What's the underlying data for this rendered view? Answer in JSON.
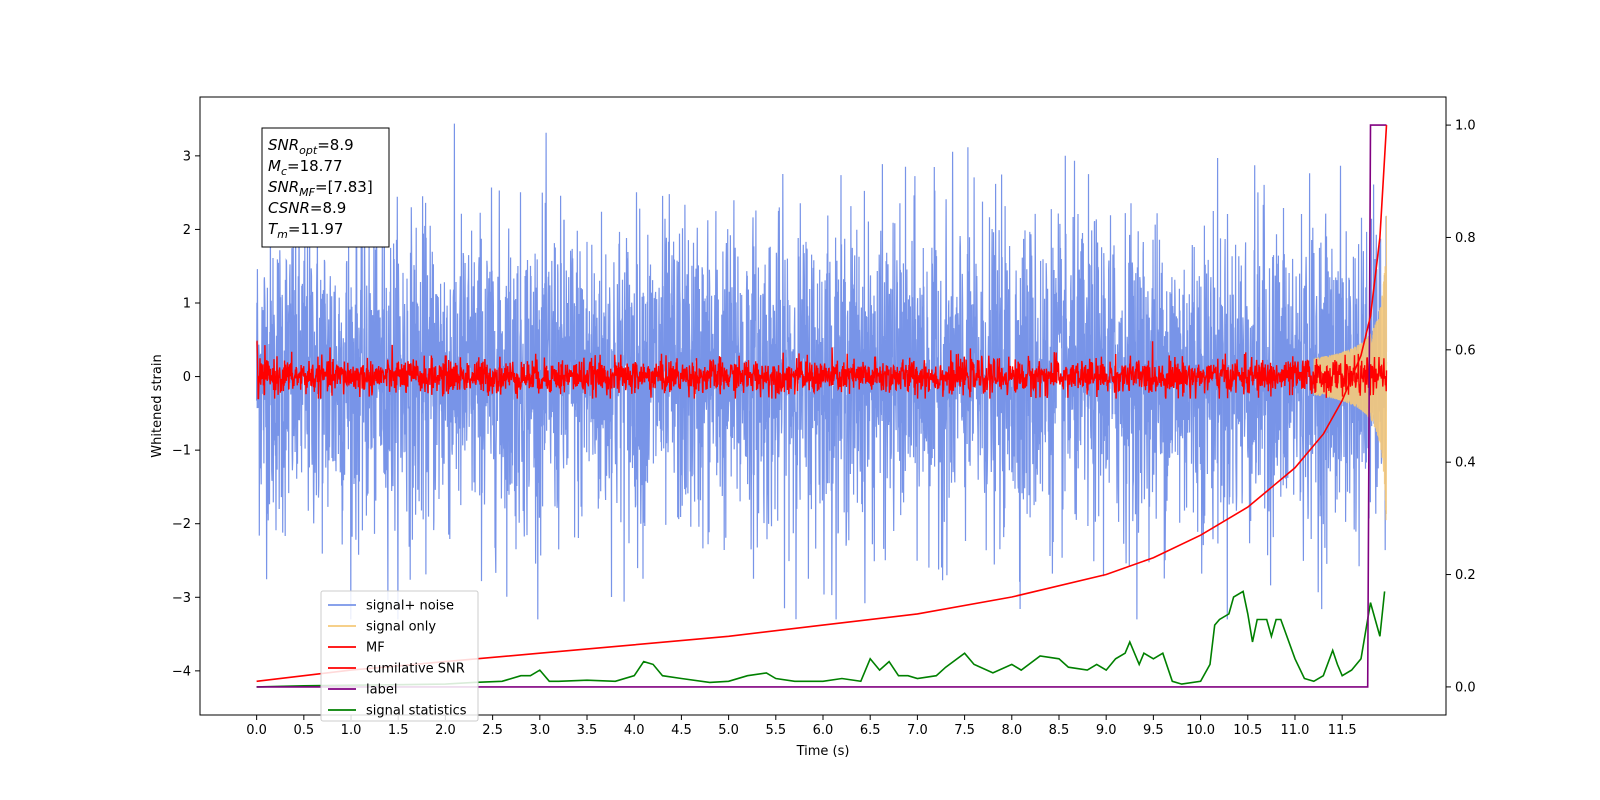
{
  "chart_data": {
    "type": "line",
    "xlabel": "Time (s)",
    "ylabel": "Whitened strain",
    "xlim": [
      -0.6,
      12.6
    ],
    "ylim_left": [
      -4.6,
      3.8
    ],
    "ylim_right": [
      -0.05,
      1.05
    ],
    "x_ticks": [
      "0.0",
      "0.5",
      "1.0",
      "1.5",
      "2.0",
      "2.5",
      "3.0",
      "3.5",
      "4.0",
      "4.5",
      "5.0",
      "5.5",
      "6.0",
      "6.5",
      "7.0",
      "7.5",
      "8.0",
      "8.5",
      "9.0",
      "9.5",
      "10.0",
      "10.5",
      "11.0",
      "11.5"
    ],
    "y_ticks_left": [
      "3",
      "2",
      "1",
      "0",
      "−1",
      "−2",
      "−3",
      "−4"
    ],
    "y_ticks_right": [
      "1.0",
      "0.8",
      "0.6",
      "0.4",
      "0.2",
      "0.0"
    ],
    "annotation": [
      {
        "sym": "SNR",
        "sub": "opt",
        "val": "=8.9"
      },
      {
        "sym": "M",
        "sub": "c",
        "val": "=18.77"
      },
      {
        "sym": "SNR",
        "sub": "MF",
        "val": "=[7.83]"
      },
      {
        "sym": "CSNR",
        "sub": "",
        "val": "=8.9"
      },
      {
        "sym": "T",
        "sub": "m",
        "val": "=11.97"
      }
    ],
    "legend_position": "lower-left",
    "series": [
      {
        "name": "signal+ noise",
        "color": "#7894e8",
        "axis": "left",
        "description_range": [
          -3.3,
          3.5
        ]
      },
      {
        "name": "signal only",
        "color": "#f5c97a",
        "axis": "left"
      },
      {
        "name": "MF",
        "color": "#ff0000",
        "axis": "left"
      },
      {
        "name": "cumilative SNR",
        "color": "#ff0000",
        "axis": "right",
        "x": [
          0.0,
          1.0,
          2.0,
          3.0,
          4.0,
          5.0,
          6.0,
          7.0,
          8.0,
          9.0,
          9.5,
          10.0,
          10.5,
          11.0,
          11.3,
          11.5,
          11.7,
          11.8,
          11.9,
          11.97
        ],
        "y": [
          0.01,
          0.03,
          0.045,
          0.06,
          0.075,
          0.09,
          0.11,
          0.13,
          0.16,
          0.2,
          0.23,
          0.27,
          0.32,
          0.39,
          0.45,
          0.51,
          0.59,
          0.66,
          0.8,
          1.0
        ]
      },
      {
        "name": "label",
        "color": "#800080",
        "axis": "right",
        "x": [
          0.0,
          11.77,
          11.8,
          11.97
        ],
        "y": [
          0.0,
          0.0,
          1.0,
          1.0
        ]
      },
      {
        "name": "signal statistics",
        "color": "#008000",
        "axis": "right",
        "x": [
          0.0,
          0.5,
          1.0,
          1.5,
          2.0,
          2.3,
          2.6,
          2.8,
          2.9,
          3.0,
          3.1,
          3.2,
          3.5,
          3.8,
          4.0,
          4.1,
          4.2,
          4.3,
          4.5,
          4.8,
          5.0,
          5.2,
          5.4,
          5.5,
          5.7,
          6.0,
          6.2,
          6.4,
          6.5,
          6.6,
          6.7,
          6.8,
          6.9,
          7.0,
          7.2,
          7.3,
          7.5,
          7.6,
          7.8,
          8.0,
          8.1,
          8.3,
          8.5,
          8.6,
          8.8,
          8.9,
          9.0,
          9.1,
          9.2,
          9.25,
          9.35,
          9.4,
          9.5,
          9.6,
          9.7,
          9.8,
          10.0,
          10.1,
          10.15,
          10.2,
          10.3,
          10.35,
          10.45,
          10.5,
          10.55,
          10.6,
          10.7,
          10.75,
          10.8,
          10.85,
          11.0,
          11.1,
          11.2,
          11.3,
          11.4,
          11.45,
          11.5,
          11.6,
          11.7,
          11.8,
          11.85,
          11.9,
          11.95
        ],
        "y": [
          0.0,
          0.002,
          0.003,
          0.004,
          0.005,
          0.008,
          0.01,
          0.02,
          0.02,
          0.03,
          0.01,
          0.01,
          0.012,
          0.01,
          0.02,
          0.045,
          0.04,
          0.02,
          0.015,
          0.008,
          0.01,
          0.02,
          0.025,
          0.015,
          0.01,
          0.01,
          0.015,
          0.01,
          0.05,
          0.03,
          0.045,
          0.02,
          0.02,
          0.015,
          0.02,
          0.035,
          0.06,
          0.04,
          0.025,
          0.04,
          0.03,
          0.055,
          0.05,
          0.035,
          0.03,
          0.04,
          0.03,
          0.05,
          0.06,
          0.08,
          0.04,
          0.06,
          0.05,
          0.06,
          0.01,
          0.005,
          0.01,
          0.04,
          0.11,
          0.12,
          0.13,
          0.16,
          0.17,
          0.13,
          0.08,
          0.12,
          0.12,
          0.09,
          0.12,
          0.12,
          0.05,
          0.015,
          0.01,
          0.02,
          0.065,
          0.04,
          0.02,
          0.03,
          0.05,
          0.15,
          0.12,
          0.09,
          0.17
        ]
      }
    ]
  }
}
